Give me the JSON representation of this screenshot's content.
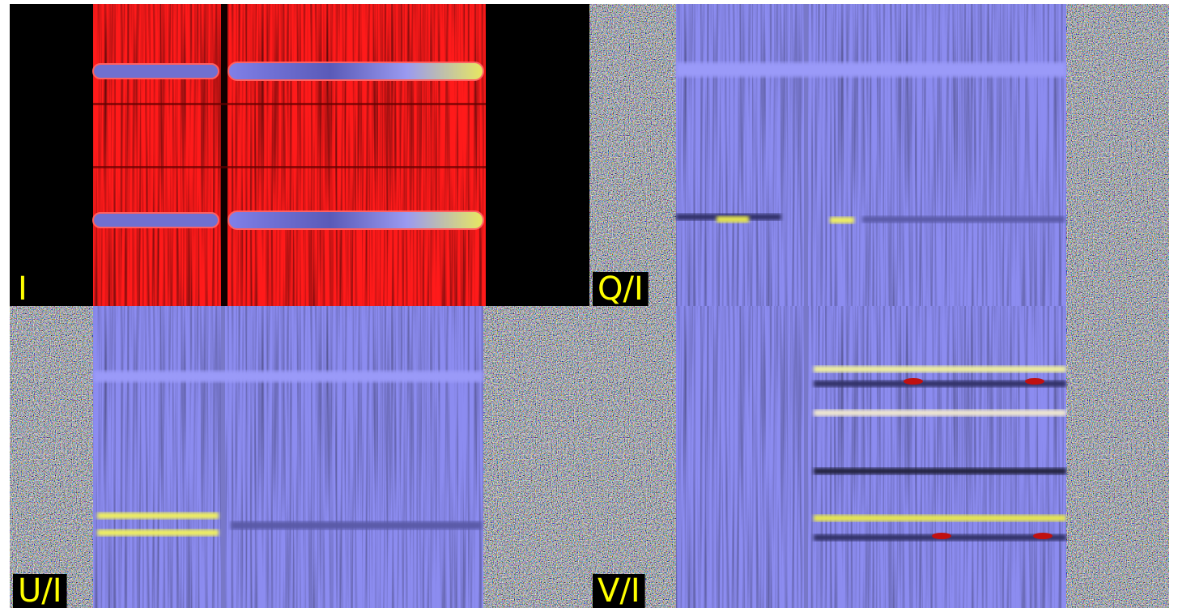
{
  "panels": [
    {
      "label": "I"
    },
    {
      "label": "Q/I"
    },
    {
      "label": "U/I"
    },
    {
      "label": "V/I"
    }
  ]
}
